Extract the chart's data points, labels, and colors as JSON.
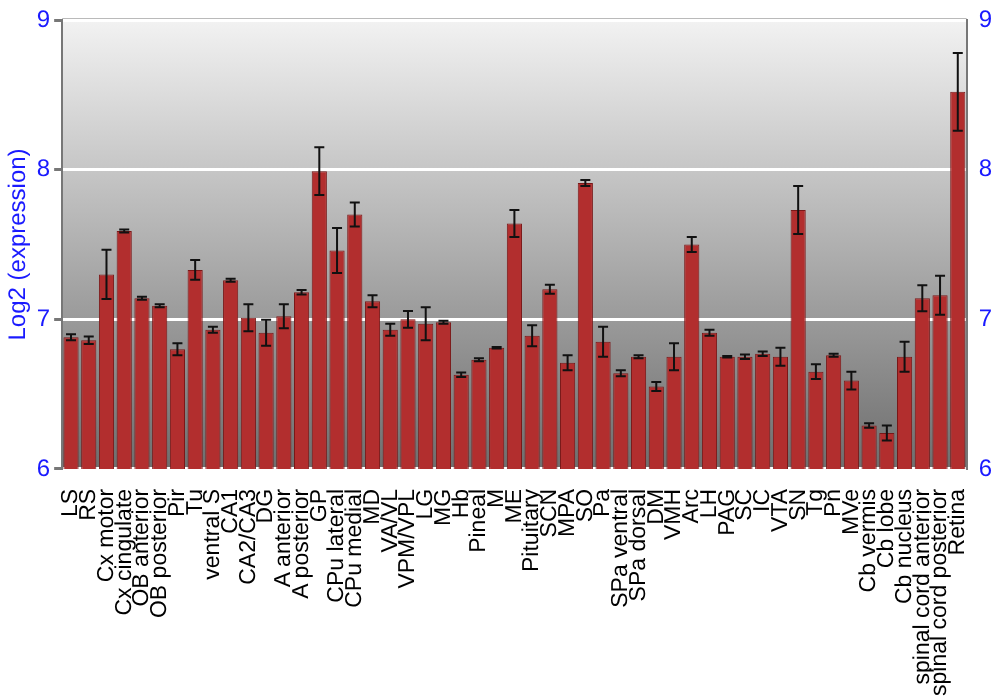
{
  "chart_data": {
    "type": "bar",
    "ylabel": "Log2 (expression)",
    "categories": [
      "LS",
      "RS",
      "Cx motor",
      "Cx cingulate",
      "OB anterior",
      "OB posterior",
      "Pir",
      "Tu",
      "ventral S",
      "CA1",
      "CA2/CA3",
      "DG",
      "A anterior",
      "A posterior",
      "GP",
      "CPu lateral",
      "CPu medial",
      "MD",
      "VA/VL",
      "VPM/VPL",
      "LG",
      "MG",
      "Hb",
      "Pineal",
      "M",
      "ME",
      "Pituitary",
      "SCN",
      "MPA",
      "SO",
      "Pa",
      "SPa ventral",
      "SPa dorsal",
      "DM",
      "VMH",
      "Arc",
      "LH",
      "PAG",
      "SC",
      "IC",
      "VTA",
      "SN",
      "Tg",
      "Pn",
      "MVe",
      "Cb vermis",
      "Cb lobe",
      "Cb nucleus",
      "spinal cord anterior",
      "spinal cord posterior",
      "Retina"
    ],
    "values": [
      6.88,
      6.86,
      7.3,
      7.59,
      7.14,
      7.09,
      6.8,
      7.33,
      6.93,
      7.26,
      7.01,
      6.91,
      7.02,
      7.18,
      7.99,
      7.46,
      7.7,
      7.12,
      6.93,
      7.0,
      6.97,
      6.98,
      6.63,
      6.73,
      6.81,
      7.64,
      6.89,
      7.2,
      6.71,
      7.91,
      6.85,
      6.64,
      6.75,
      6.55,
      6.75,
      7.5,
      6.91,
      6.75,
      6.75,
      6.77,
      6.75,
      7.73,
      6.65,
      6.76,
      6.59,
      6.29,
      6.24,
      6.75,
      7.14,
      7.16,
      8.52
    ],
    "errors": [
      0.02,
      0.025,
      0.165,
      0.01,
      0.01,
      0.01,
      0.04,
      0.066,
      0.02,
      0.01,
      0.09,
      0.087,
      0.08,
      0.015,
      0.16,
      0.15,
      0.08,
      0.04,
      0.04,
      0.056,
      0.11,
      0.01,
      0.015,
      0.01,
      0.005,
      0.09,
      0.07,
      0.03,
      0.05,
      0.02,
      0.1,
      0.02,
      0.01,
      0.03,
      0.09,
      0.05,
      0.02,
      0.005,
      0.015,
      0.015,
      0.06,
      0.16,
      0.05,
      0.01,
      0.06,
      0.015,
      0.05,
      0.1,
      0.087,
      0.13,
      0.26
    ],
    "color": "#b22e2e",
    "ylim": [
      6,
      9
    ],
    "yticks": [
      6,
      7,
      8,
      9
    ],
    "y2lim": [
      6,
      9
    ],
    "y2ticks": [
      6,
      7,
      8,
      9
    ],
    "grid": "y",
    "legend": false
  }
}
